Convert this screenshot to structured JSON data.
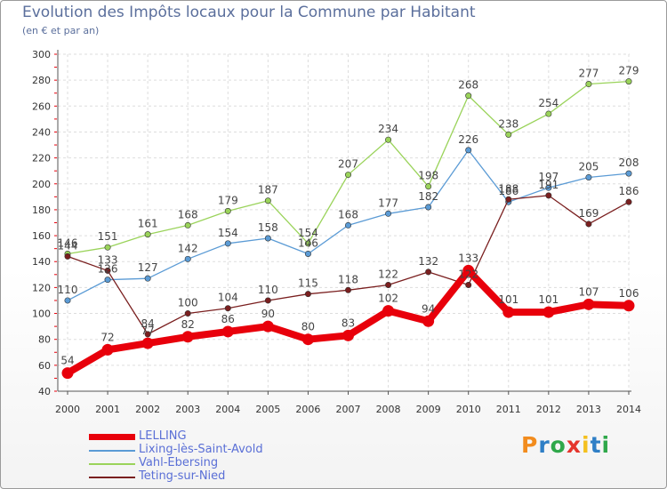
{
  "title": "Evolution des Impôts locaux pour la Commune par Habitant",
  "subtitle": "(en € et par an)",
  "logo": {
    "text": "Proxiti",
    "colors": [
      "#f28c1e",
      "#2f7fc6",
      "#2fa84a",
      "#e5352c",
      "#f4c01e",
      "#2f7fc6",
      "#2fa84a"
    ]
  },
  "chart_data": {
    "type": "line",
    "title": "Evolution des Impôts locaux pour la Commune par Habitant",
    "subtitle": "(en € et par an)",
    "x": [
      "2000",
      "2001",
      "2002",
      "2003",
      "2004",
      "2005",
      "2006",
      "2007",
      "2008",
      "2009",
      "2010",
      "2011",
      "2012",
      "2013",
      "2014"
    ],
    "ylim": [
      40,
      300
    ],
    "yticks": [
      40,
      60,
      80,
      100,
      120,
      140,
      160,
      180,
      200,
      220,
      240,
      260,
      280,
      300
    ],
    "grid": true,
    "legend_position": "bottom-left",
    "series": [
      {
        "name": "LELLING",
        "color": "#e8000b",
        "values": [
          54,
          72,
          77,
          82,
          86,
          90,
          80,
          83,
          102,
          94,
          133,
          101,
          101,
          107,
          106
        ],
        "labels": [
          "54",
          "72",
          "77",
          "82",
          "86",
          "90",
          "80",
          "83",
          "102",
          "94",
          "133",
          "101",
          "101",
          "107",
          "106"
        ]
      },
      {
        "name": "Lixing-lès-Saint-Avold",
        "color": "#5b9bd5",
        "values": [
          110,
          126,
          127,
          142,
          154,
          158,
          146,
          168,
          177,
          182,
          226,
          186,
          197,
          205,
          208
        ],
        "labels": [
          "110",
          "126",
          "127",
          "142",
          "154",
          "158",
          "146",
          "168",
          "177",
          "182",
          "226",
          "186",
          "197",
          "205",
          "208"
        ]
      },
      {
        "name": "Vahl-Ebersing",
        "color": "#9ad35a",
        "values": [
          146,
          151,
          161,
          168,
          179,
          187,
          154,
          207,
          234,
          198,
          268,
          238,
          254,
          277,
          279
        ],
        "labels": [
          "146",
          "151",
          "161",
          "168",
          "179",
          "187",
          "154",
          "207",
          "234",
          "198",
          "268",
          "238",
          "254",
          "277",
          "279"
        ]
      },
      {
        "name": "Teting-sur-Nied",
        "color": "#7a1f1f",
        "values": [
          144,
          133,
          84,
          100,
          104,
          110,
          115,
          118,
          122,
          132,
          122,
          188,
          191,
          169,
          186
        ],
        "labels": [
          "144",
          "133",
          "84",
          "100",
          "104",
          "110",
          "115",
          "118",
          "122",
          "132",
          "122",
          "188",
          "191",
          "169",
          "186"
        ]
      }
    ]
  }
}
